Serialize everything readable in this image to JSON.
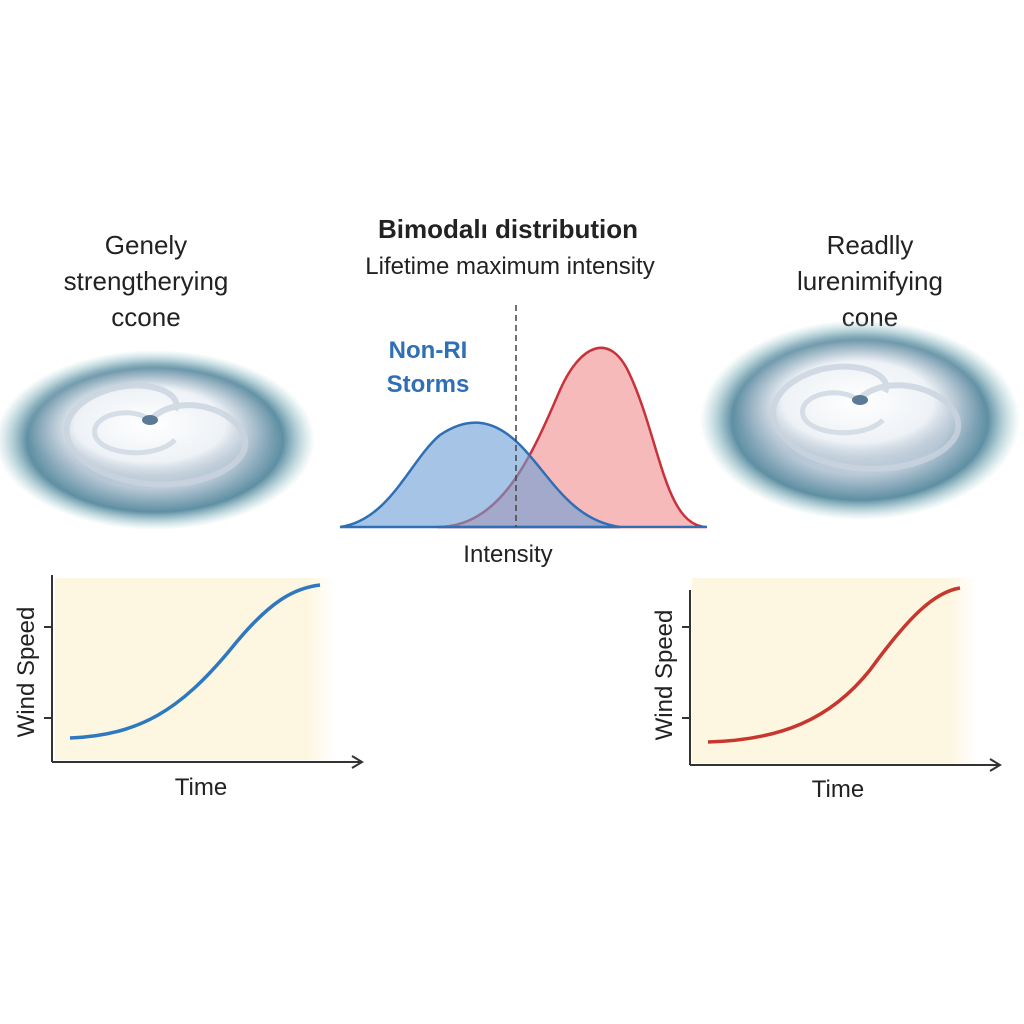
{
  "left_panel": {
    "title_lines": [
      "Genely",
      "strengtherying",
      "ccone"
    ],
    "y_label": "Wind Speed",
    "x_label": "Time"
  },
  "center_panel": {
    "title": "Bimodalı distribution",
    "subtitle": "Lifetime maximum intensity",
    "series_label_lines": [
      "Non-RI",
      "Storms"
    ],
    "x_label": "Intensity"
  },
  "right_panel": {
    "title_lines": [
      "Readlly",
      "lurenimifying",
      "cone"
    ],
    "y_label": "Wind Speed",
    "x_label": "Time"
  }
}
